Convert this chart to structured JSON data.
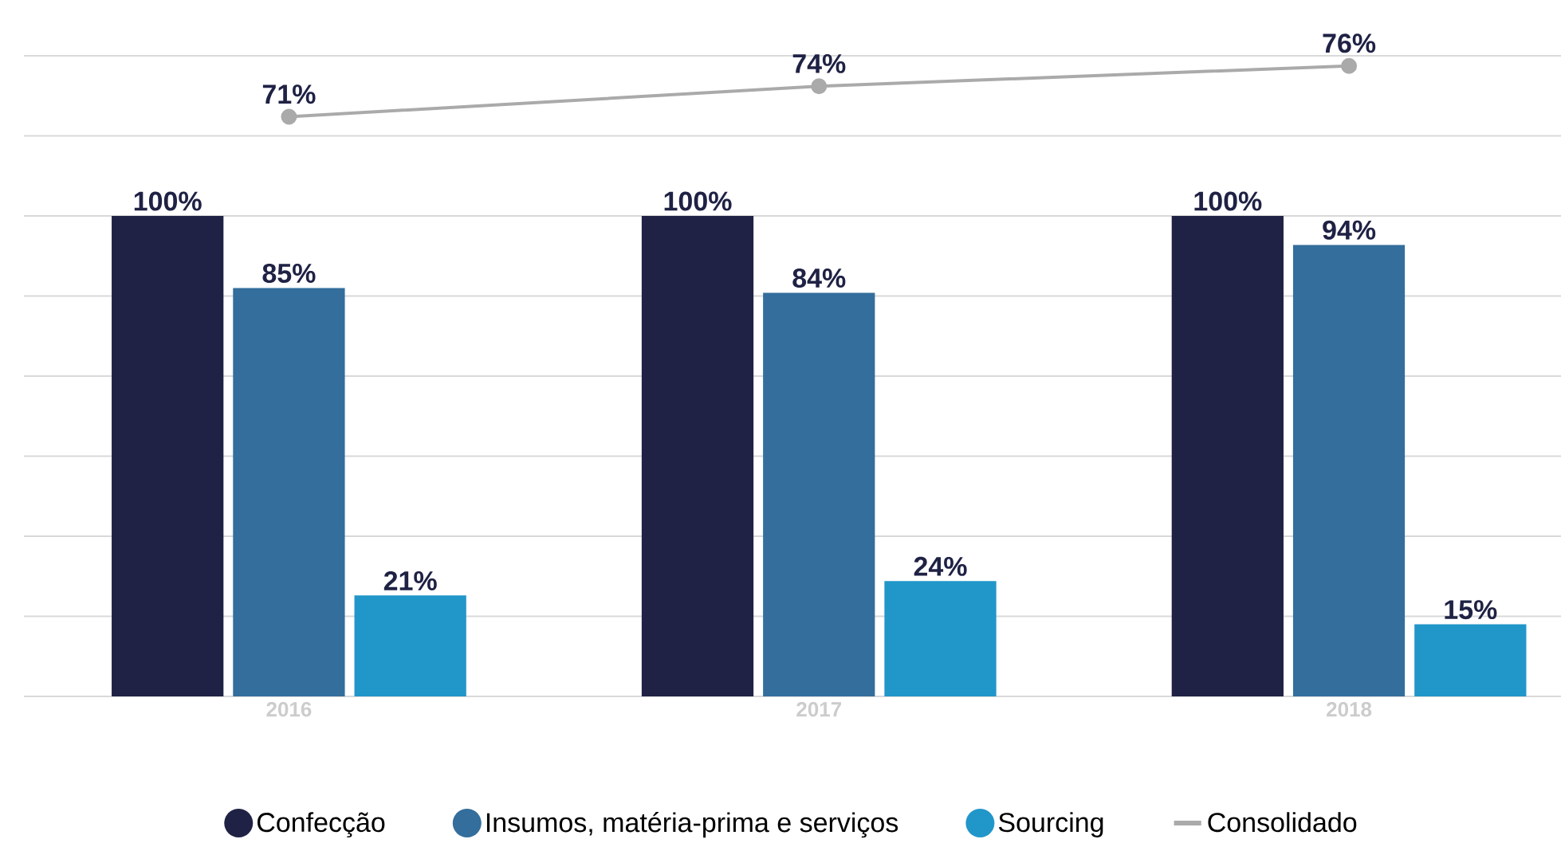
{
  "chart_data": {
    "type": "bar",
    "categories": [
      "2016",
      "2017",
      "2018"
    ],
    "series": [
      {
        "name": "Confecção",
        "color": "#1f2244",
        "values": [
          100,
          100,
          100
        ],
        "value_labels": [
          "100%",
          "100%",
          "100%"
        ]
      },
      {
        "name": "Insumos, matéria-prima e serviços",
        "color": "#336e9c",
        "values": [
          85,
          84,
          94
        ],
        "value_labels": [
          "85%",
          "84%",
          "94%"
        ]
      },
      {
        "name": "Sourcing",
        "color": "#2196c9",
        "values": [
          21,
          24,
          15
        ],
        "value_labels": [
          "21%",
          "24%",
          "15%"
        ]
      },
      {
        "name": "Consolidado",
        "type": "line",
        "axis": "y2",
        "color": "#aaaaaa",
        "marker": "circle",
        "values": [
          71,
          74,
          76
        ],
        "value_labels": [
          "71%",
          "74%",
          "76%"
        ]
      }
    ],
    "ylim": [
      0,
      133.33
    ],
    "yticks": [
      {
        "value": 0,
        "label": null
      },
      {
        "value": 16.67,
        "label": null
      },
      {
        "value": 33.33,
        "label": null
      },
      {
        "value": 50,
        "label": null
      },
      {
        "value": 66.67,
        "label": null
      },
      {
        "value": 83.33,
        "label": null
      },
      {
        "value": 100,
        "label": null
      },
      {
        "value": 116.67,
        "label": null
      },
      {
        "value": 133.33,
        "label": null
      }
    ],
    "y2lim": [
      14,
      77
    ],
    "grid": "y",
    "legend": "bottom",
    "tick_labels": "x"
  }
}
